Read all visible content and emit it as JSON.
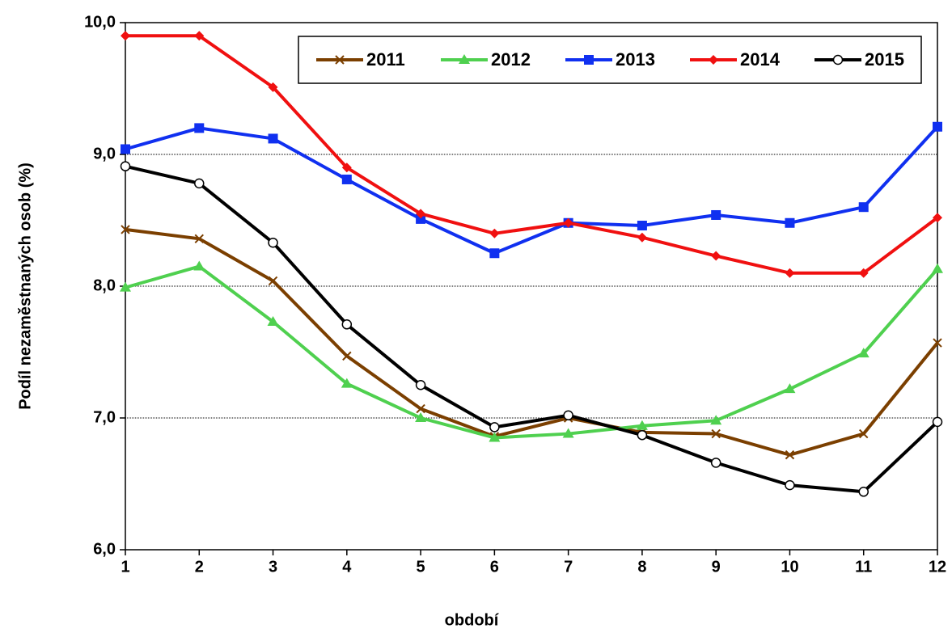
{
  "chart_data": {
    "type": "line",
    "x_label": "období",
    "y_label": "Podíl nezaměstnaných osob (%)",
    "x": [
      1,
      2,
      3,
      4,
      5,
      6,
      7,
      8,
      9,
      10,
      11,
      12
    ],
    "xlim": [
      1,
      12
    ],
    "xticks": [
      1,
      2,
      3,
      4,
      5,
      6,
      7,
      8,
      9,
      10,
      11,
      12
    ],
    "ylim": [
      6,
      10
    ],
    "yticks": [
      {
        "value": 6,
        "label": "6,0"
      },
      {
        "value": 7,
        "label": "7,0"
      },
      {
        "value": 8,
        "label": "8,0"
      },
      {
        "value": 9,
        "label": "9,0"
      },
      {
        "value": 10,
        "label": "10,0"
      }
    ],
    "grid": true,
    "legend": "top-right",
    "series": [
      {
        "name": "2011",
        "color": "#7b3f00",
        "marker": "x",
        "values": [
          8.43,
          8.36,
          8.04,
          7.47,
          7.07,
          6.86,
          7.0,
          6.89,
          6.88,
          6.72,
          6.88,
          7.57
        ]
      },
      {
        "name": "2012",
        "color": "#4fd04f",
        "marker": "triangle",
        "values": [
          7.99,
          8.15,
          7.73,
          7.26,
          7.0,
          6.85,
          6.88,
          6.94,
          6.98,
          7.22,
          7.49,
          8.13
        ]
      },
      {
        "name": "2013",
        "color": "#1030f0",
        "marker": "square",
        "values": [
          9.04,
          9.2,
          9.12,
          8.81,
          8.51,
          8.25,
          8.48,
          8.46,
          8.54,
          8.48,
          8.6,
          9.21
        ]
      },
      {
        "name": "2014",
        "color": "#f01010",
        "marker": "diamond",
        "values": [
          9.9,
          9.9,
          9.51,
          8.9,
          8.55,
          8.4,
          8.48,
          8.37,
          8.23,
          8.1,
          8.1,
          8.52
        ]
      },
      {
        "name": "2015",
        "color": "#000000",
        "marker": "circle",
        "values": [
          8.91,
          8.78,
          8.33,
          7.71,
          7.25,
          6.93,
          7.02,
          6.87,
          6.66,
          6.49,
          6.44,
          6.97
        ]
      }
    ]
  }
}
